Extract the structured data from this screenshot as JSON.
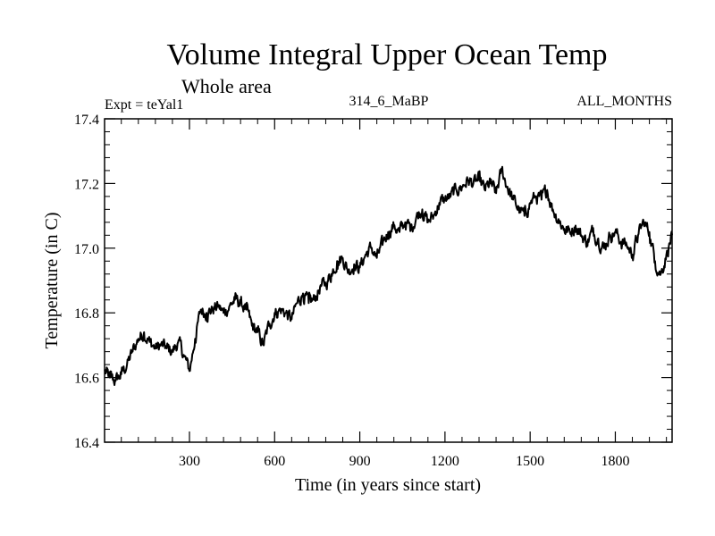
{
  "chart_data": {
    "type": "line",
    "title": "Volume Integral Upper Ocean Temp",
    "subtitle": "Whole area",
    "left_label": "Expt = teYal1",
    "center_label": "314_6_MaBP",
    "right_label": "ALL_MONTHS",
    "xlabel": "Time (in years since start)",
    "ylabel": "Temperature (in C)",
    "xlim": [
      1,
      2000
    ],
    "ylim": [
      16.4,
      17.4
    ],
    "x_ticks": [
      300,
      600,
      900,
      1200,
      1500,
      1800
    ],
    "x_tick_labels": [
      "300",
      "600",
      "900",
      "1200",
      "1500",
      "1800"
    ],
    "y_ticks": [
      16.4,
      16.6,
      16.8,
      17.0,
      17.2,
      17.4
    ],
    "y_tick_labels": [
      "16.4",
      "16.6",
      "16.8",
      "17.0",
      "17.2",
      "17.4"
    ],
    "grid": false,
    "series": [
      {
        "name": "Temperature",
        "color": "#000000",
        "x": [
          1,
          20,
          40,
          60,
          80,
          100,
          120,
          140,
          160,
          180,
          200,
          220,
          240,
          260,
          280,
          300,
          320,
          340,
          360,
          380,
          400,
          420,
          440,
          460,
          480,
          500,
          520,
          540,
          560,
          580,
          600,
          620,
          640,
          660,
          680,
          700,
          720,
          740,
          760,
          780,
          800,
          820,
          840,
          860,
          880,
          900,
          920,
          940,
          960,
          980,
          1000,
          1020,
          1040,
          1060,
          1080,
          1100,
          1120,
          1140,
          1160,
          1180,
          1200,
          1220,
          1240,
          1260,
          1280,
          1300,
          1320,
          1340,
          1360,
          1380,
          1400,
          1420,
          1440,
          1460,
          1480,
          1500,
          1520,
          1540,
          1560,
          1580,
          1600,
          1620,
          1640,
          1660,
          1680,
          1700,
          1720,
          1740,
          1760,
          1780,
          1800,
          1820,
          1840,
          1860,
          1880,
          1900,
          1920,
          1940,
          1960,
          1980,
          2000
        ],
        "values": [
          16.62,
          16.6,
          16.59,
          16.61,
          16.64,
          16.68,
          16.72,
          16.74,
          16.71,
          16.69,
          16.7,
          16.69,
          16.68,
          16.71,
          16.67,
          16.62,
          16.72,
          16.81,
          16.8,
          16.81,
          16.82,
          16.8,
          16.82,
          16.84,
          16.83,
          16.81,
          16.76,
          16.74,
          16.7,
          16.76,
          16.8,
          16.81,
          16.8,
          16.78,
          16.83,
          16.86,
          16.83,
          16.84,
          16.88,
          16.89,
          16.92,
          16.96,
          16.97,
          16.93,
          16.95,
          16.94,
          16.98,
          17.0,
          16.97,
          17.01,
          17.05,
          17.07,
          17.05,
          17.08,
          17.06,
          17.1,
          17.12,
          17.08,
          17.1,
          17.14,
          17.15,
          17.16,
          17.18,
          17.19,
          17.21,
          17.2,
          17.21,
          17.18,
          17.2,
          17.17,
          17.24,
          17.19,
          17.15,
          17.12,
          17.1,
          17.14,
          17.16,
          17.15,
          17.18,
          17.12,
          17.09,
          17.06,
          17.05,
          17.07,
          17.04,
          17.02,
          17.05,
          17.03,
          17.0,
          17.04,
          17.05,
          17.02,
          17.01,
          16.98,
          17.04,
          17.08,
          17.05,
          16.96,
          16.92,
          16.98,
          17.04
        ]
      }
    ]
  }
}
